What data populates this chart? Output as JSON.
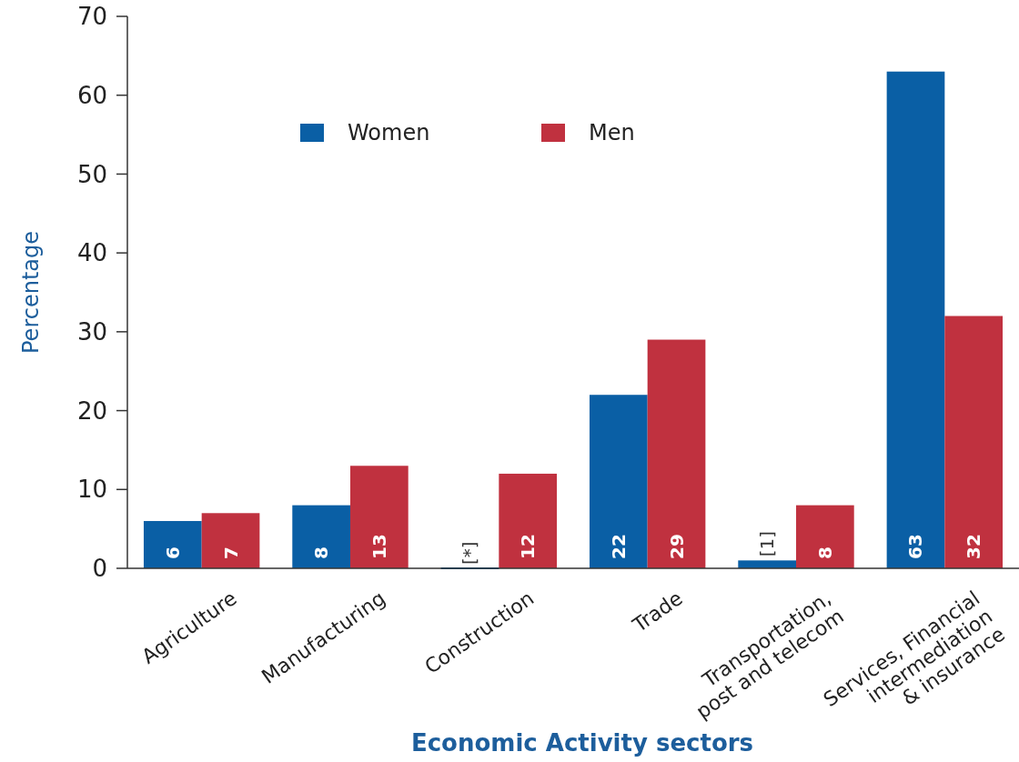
{
  "chart_data": {
    "type": "bar",
    "xlabel": "Economic Activity sectors",
    "ylabel": "Percentage",
    "categories": [
      "Agriculture",
      "Manufacturing",
      "Construction",
      "Trade",
      "Transportation,\npost and telecom",
      "Services, Financial\nintermediation\n& insurance"
    ],
    "series": [
      {
        "name": "Women",
        "color": "#0a5fa5",
        "values": [
          6,
          8,
          0,
          22,
          1,
          63
        ],
        "value_labels": [
          "6",
          "8",
          "[*]",
          "22",
          "[1]",
          "63"
        ]
      },
      {
        "name": "Men",
        "color": "#c0313f",
        "values": [
          7,
          13,
          12,
          29,
          8,
          32
        ],
        "value_labels": [
          "7",
          "13",
          "12",
          "29",
          "8",
          "32"
        ]
      }
    ],
    "ylim": [
      0,
      70
    ],
    "yticks": [
      0,
      10,
      20,
      30,
      40,
      50,
      60,
      70
    ],
    "legend": "top"
  }
}
